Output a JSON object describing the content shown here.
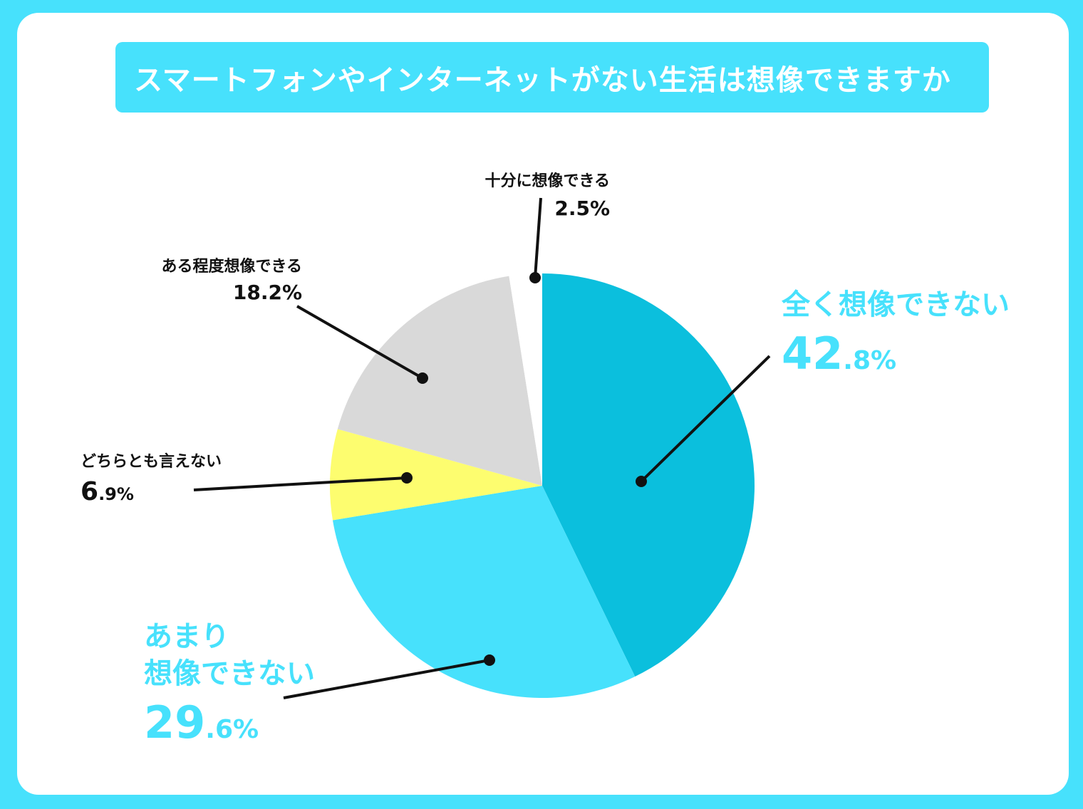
{
  "title": "スマートフォンやインターネットがない生活は想像できますか",
  "colors": {
    "background": "#47e1fc",
    "card": "#ffffff",
    "label_dark": "#111111",
    "label_cyan": "#47e1fc"
  },
  "chart_data": {
    "type": "pie",
    "title": "スマートフォンやインターネットがない生活は想像できますか",
    "start": "12 o'clock",
    "direction": "clockwise",
    "slices": [
      {
        "label": "全く想像できない",
        "value": 42.8,
        "pct_int": "42",
        "pct_dec": ".8%",
        "color": "#0bbfdd"
      },
      {
        "label_line1": "あまり",
        "label_line2": "想像できない",
        "value": 29.6,
        "pct_int": "29",
        "pct_dec": ".6%",
        "color": "#47e1fc"
      },
      {
        "label": "どちらとも言えない",
        "value": 6.9,
        "pct_int": "6",
        "pct_dec": ".9%",
        "color": "#fdfd6f"
      },
      {
        "label": "ある程度想像できる",
        "value": 18.2,
        "pct": "18.2%",
        "color": "#d9d9d9"
      },
      {
        "label": "十分に想像できる",
        "value": 2.5,
        "pct": "2.5%",
        "color": "#ffffff"
      }
    ]
  }
}
